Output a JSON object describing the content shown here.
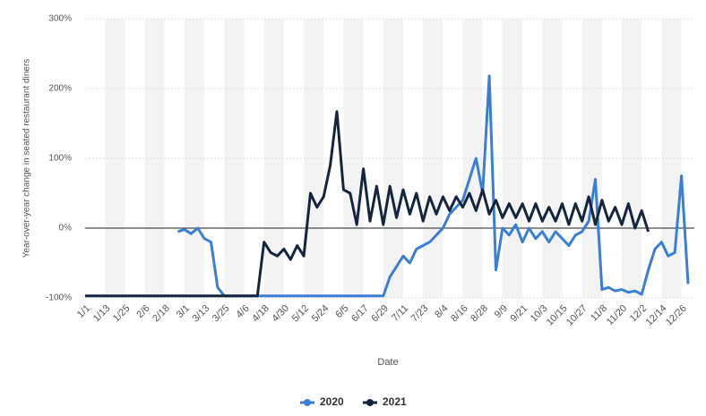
{
  "chart_data": {
    "type": "line",
    "xlabel": "Date",
    "ylabel": "Year-over-year change in seated restaurant diners",
    "categories": [
      "1/1",
      null,
      null,
      "1/13",
      null,
      null,
      "1/25",
      null,
      null,
      "2/6",
      null,
      null,
      "2/18",
      null,
      null,
      "3/1",
      null,
      null,
      "3/13",
      null,
      null,
      "3/25",
      null,
      null,
      "4/6",
      null,
      null,
      "4/18",
      null,
      null,
      "4/30",
      null,
      null,
      "5/12",
      null,
      null,
      "5/24",
      null,
      null,
      "6/5",
      null,
      null,
      "6/17",
      null,
      null,
      "6/29",
      null,
      null,
      "7/11",
      null,
      null,
      "7/23",
      null,
      null,
      "8/4",
      null,
      null,
      "8/16",
      null,
      null,
      "8/28",
      null,
      null,
      "9/9",
      null,
      null,
      "9/21",
      null,
      null,
      "10/3",
      null,
      null,
      "10/15",
      null,
      null,
      "10/27",
      null,
      null,
      "11/8",
      null,
      null,
      "11/20",
      null,
      null,
      "12/2",
      null,
      null,
      "12/14",
      null,
      null,
      "12/26",
      null
    ],
    "series": [
      {
        "name": "2020",
        "color": "#3a7fd5",
        "values": [
          null,
          null,
          null,
          null,
          null,
          null,
          null,
          null,
          null,
          null,
          null,
          null,
          null,
          null,
          -5,
          -2,
          -8,
          0,
          -15,
          -20,
          -85,
          -97,
          -97,
          -97,
          -97,
          -97,
          -97,
          -97,
          -97,
          -97,
          -97,
          -97,
          -97,
          -97,
          -97,
          -97,
          -97,
          -97,
          -97,
          -97,
          -97,
          -97,
          -97,
          -97,
          -97,
          -97,
          -70,
          -55,
          -40,
          -50,
          -30,
          -25,
          -20,
          -10,
          0,
          20,
          30,
          40,
          70,
          100,
          50,
          218,
          -60,
          0,
          -10,
          5,
          -20,
          0,
          -15,
          -5,
          -20,
          -5,
          -15,
          -25,
          -10,
          -5,
          10,
          70,
          -88,
          -85,
          -90,
          -88,
          -92,
          -90,
          -95,
          -60,
          -30,
          -20,
          -40,
          -35,
          75,
          -80
        ]
      },
      {
        "name": "2021",
        "color": "#14253d",
        "values": [
          -97,
          -97,
          -97,
          -97,
          -97,
          -97,
          -97,
          -97,
          -97,
          -97,
          -97,
          -97,
          -97,
          -97,
          -97,
          -97,
          -97,
          -97,
          -97,
          -97,
          -97,
          -97,
          -97,
          -97,
          -97,
          -97,
          -97,
          -20,
          -35,
          -40,
          -30,
          -45,
          -25,
          -40,
          50,
          30,
          45,
          90,
          167,
          55,
          50,
          5,
          85,
          10,
          60,
          5,
          60,
          15,
          55,
          20,
          50,
          10,
          45,
          20,
          45,
          25,
          45,
          30,
          50,
          25,
          55,
          20,
          40,
          15,
          35,
          15,
          35,
          10,
          35,
          10,
          30,
          10,
          35,
          5,
          35,
          10,
          45,
          5,
          40,
          10,
          30,
          5,
          35,
          0,
          25,
          -5,
          null,
          null,
          null,
          null,
          null,
          null
        ]
      }
    ],
    "ylim": [
      -100,
      300
    ],
    "yticks": [
      {
        "value": -100,
        "label": "-100%"
      },
      {
        "value": 0,
        "label": "0%"
      },
      {
        "value": 100,
        "label": "100%"
      },
      {
        "value": 200,
        "label": "200%"
      },
      {
        "value": 300,
        "label": "300%"
      }
    ],
    "grid": true,
    "legend": "bottom"
  }
}
